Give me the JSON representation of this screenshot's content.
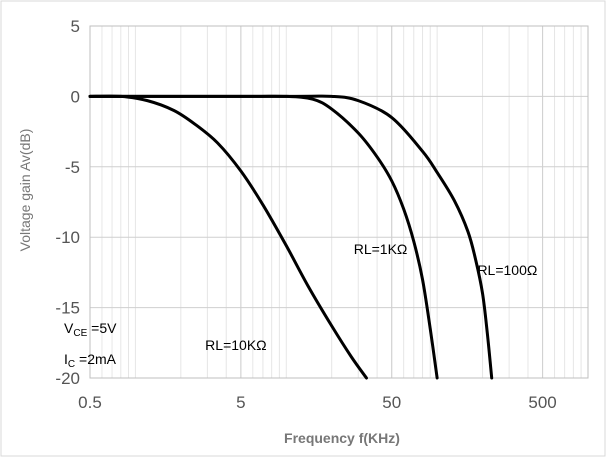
{
  "chart_data": {
    "type": "line",
    "xscale": "log",
    "xlabel": "Frequency f(KHz)",
    "ylabel": "Voltage gain Av(dB)",
    "xlim": [
      0.5,
      1000
    ],
    "ylim": [
      -20,
      5
    ],
    "xticks": [
      0.5,
      5,
      50,
      500
    ],
    "xtick_labels": [
      "0.5",
      "5",
      "50",
      "500"
    ],
    "yticks": [
      5,
      0,
      -5,
      -10,
      -15,
      -20
    ],
    "ytick_labels": [
      "5",
      "0",
      "-5",
      "-10",
      "-15",
      "-20"
    ],
    "grid": true,
    "series": [
      {
        "name": "RL=10KΩ",
        "color": "#000000",
        "x": [
          0.5,
          0.8,
          1.2,
          1.8,
          2.5,
          3.5,
          5,
          7,
          10,
          14,
          20,
          27,
          34
        ],
        "y": [
          0,
          0,
          -0.3,
          -1.0,
          -2.0,
          -3.3,
          -5.3,
          -7.7,
          -10.6,
          -13.5,
          -16.3,
          -18.5,
          -20
        ]
      },
      {
        "name": "RL=1KΩ",
        "color": "#000000",
        "x": [
          0.5,
          5,
          10,
          15,
          20,
          30,
          40,
          50,
          60,
          70,
          80,
          90,
          100
        ],
        "y": [
          0,
          0,
          0,
          -0.2,
          -0.9,
          -2.6,
          -4.3,
          -6.0,
          -8.0,
          -10.3,
          -13.0,
          -16.5,
          -20
        ]
      },
      {
        "name": "RL=100Ω",
        "color": "#000000",
        "x": [
          0.5,
          10,
          20,
          30,
          50,
          80,
          100,
          130,
          160,
          180,
          200,
          215,
          230
        ],
        "y": [
          0,
          0,
          0,
          -0.3,
          -1.5,
          -3.9,
          -5.4,
          -7.4,
          -9.6,
          -11.6,
          -14.0,
          -16.8,
          -20
        ]
      }
    ],
    "annotations": [
      {
        "text": "RL=1KΩ",
        "x": 28,
        "y": -11.2
      },
      {
        "text": "RL=100Ω",
        "x": 185,
        "y": -12.7
      },
      {
        "text": "RL=10KΩ",
        "x": 2.9,
        "y": -18.0
      }
    ],
    "conditions": {
      "vce_main": "V",
      "vce_sub": "CE",
      "vce_value": " =5V",
      "ic_main": "I",
      "ic_sub": "C",
      "ic_value": " =2mA"
    }
  }
}
